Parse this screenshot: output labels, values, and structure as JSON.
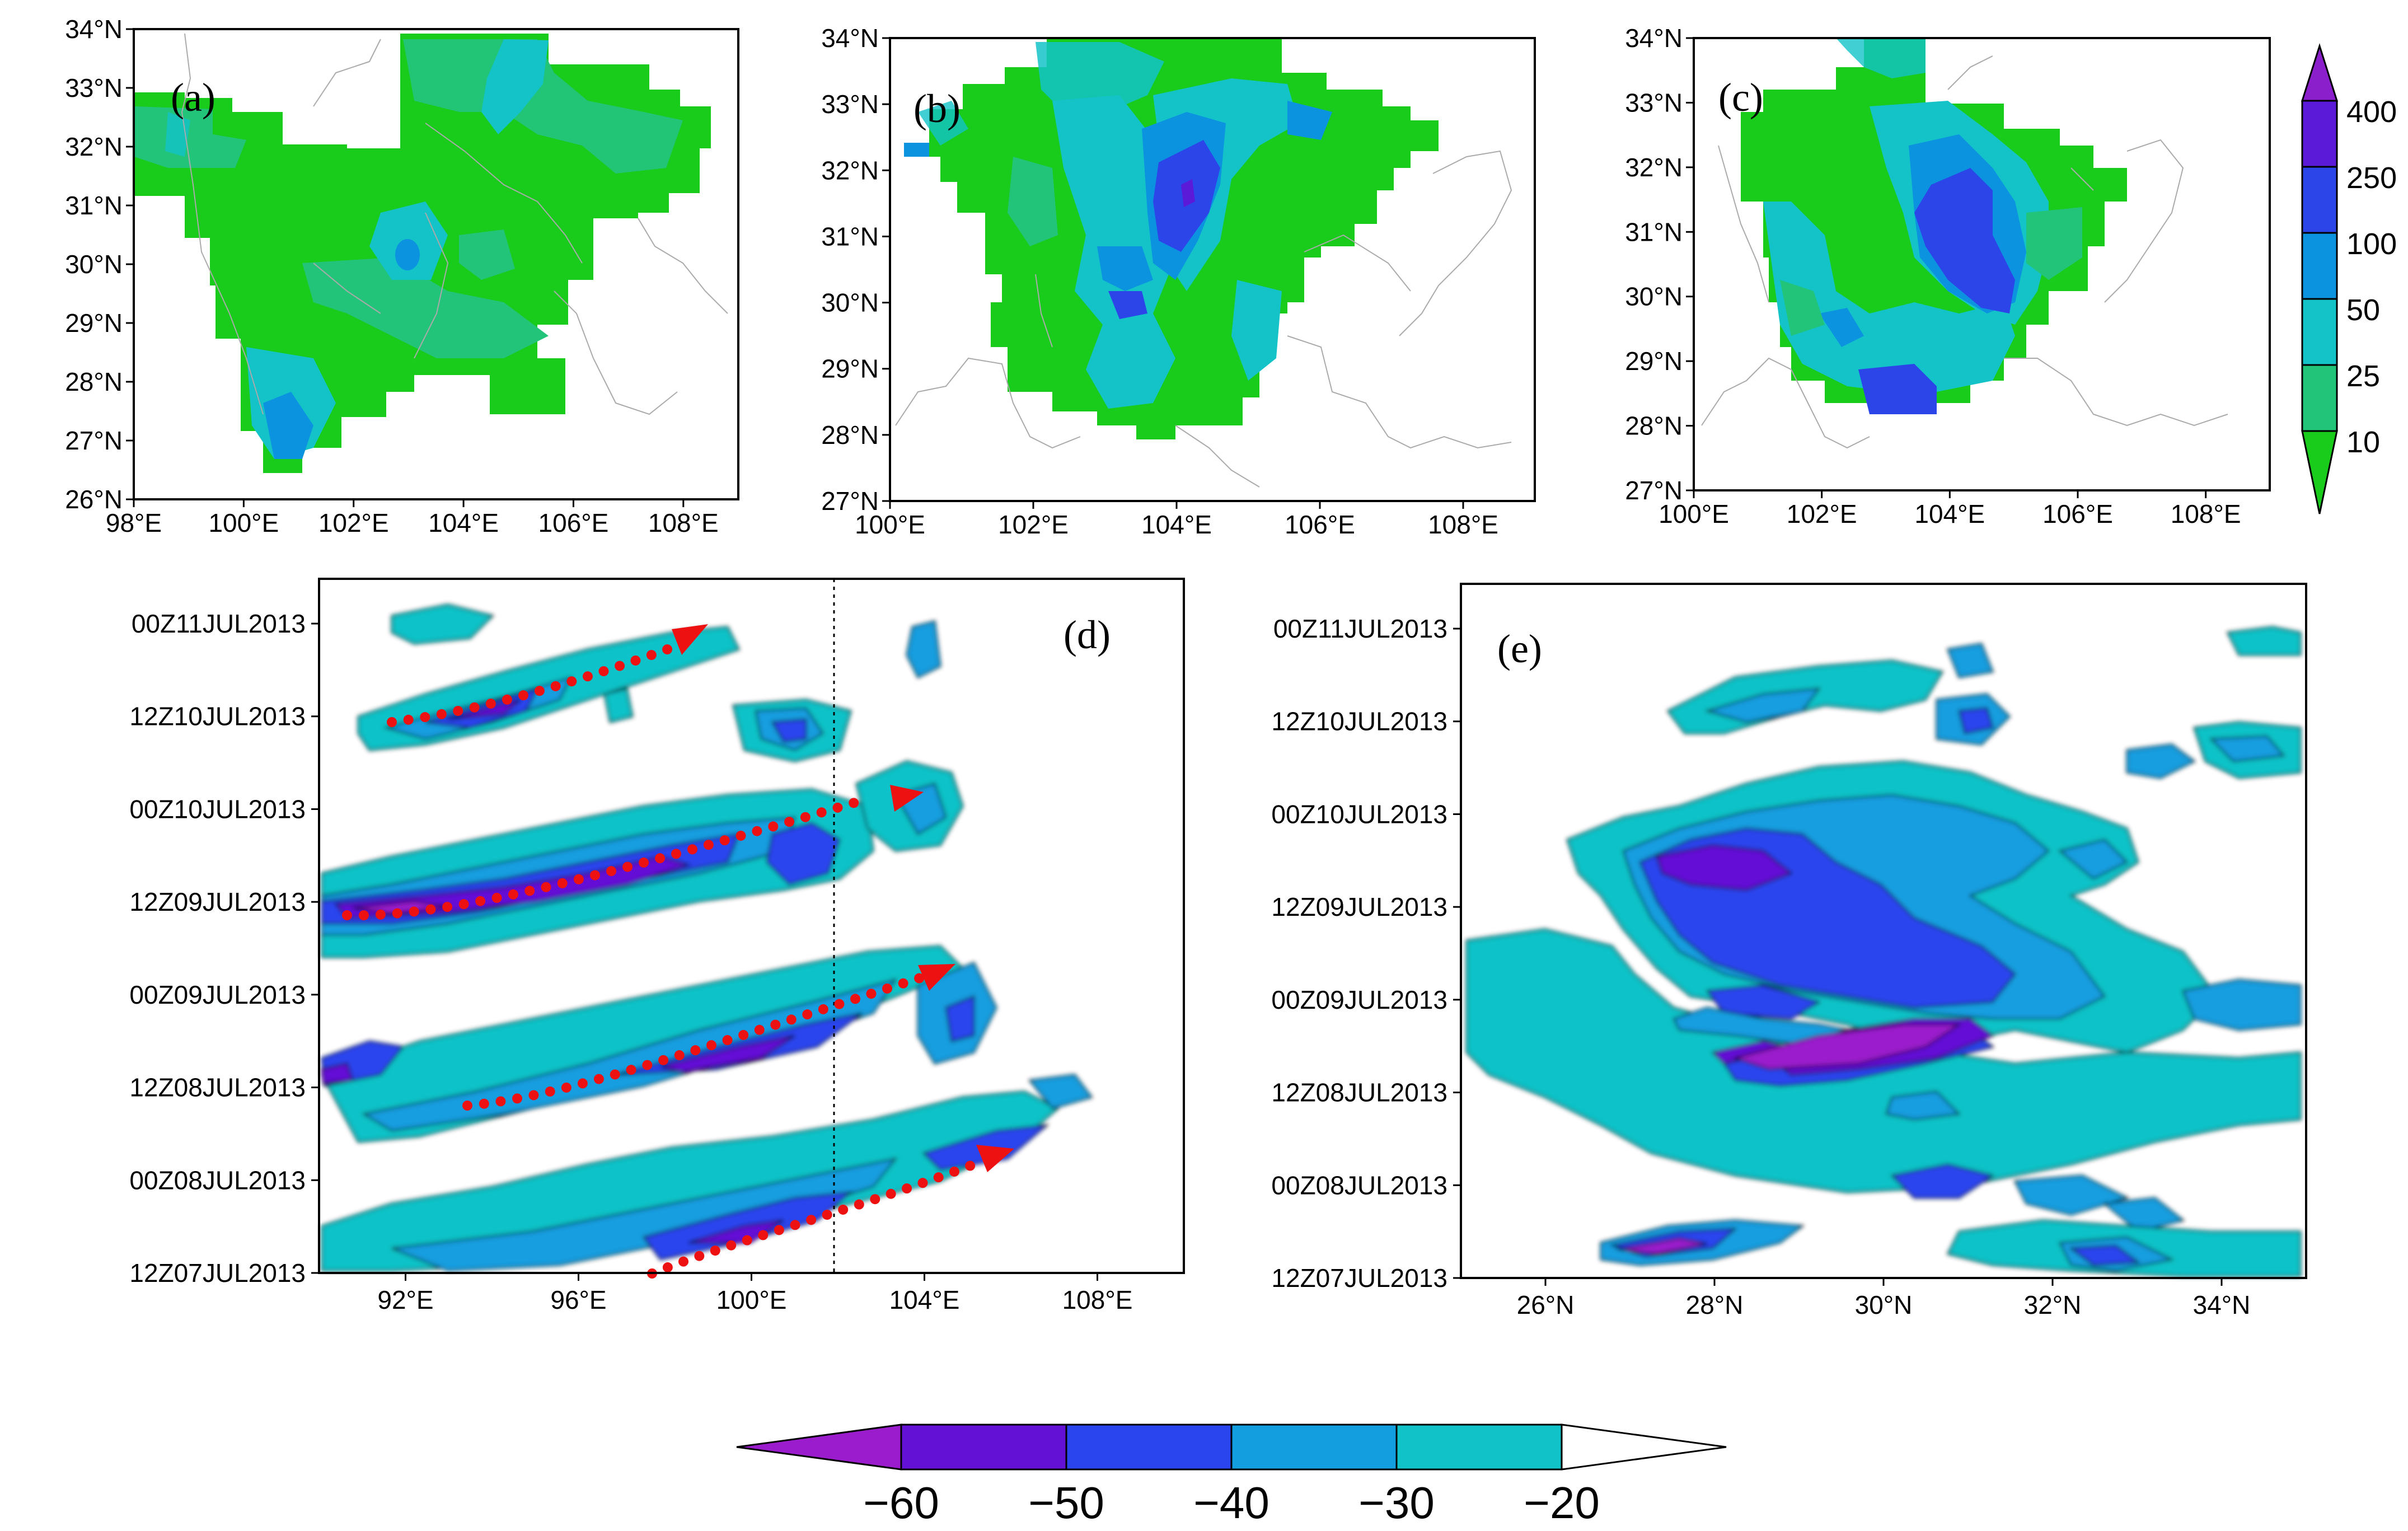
{
  "colors": {
    "lt10": "#19cc1b",
    "c10_25": "#22c47a",
    "c25_50": "#13c3c8",
    "c50_100": "#0c93e0",
    "c100_250": "#2b45e8",
    "c250_400": "#5a1ad8",
    "gt400": "#8b1fcc",
    "tbb_lt60": "#9a1ccc",
    "tbb_60_50": "#6411d6",
    "tbb_50_40": "#2b45ee",
    "tbb_40_30": "#139ee0",
    "tbb_30_20": "#11c2c8",
    "tbb_gt20": "#ffffff",
    "track": "#ee1111",
    "border": "#aaaaaa"
  },
  "panels": {
    "a": {
      "label": "(a)"
    },
    "b": {
      "label": "(b)"
    },
    "c": {
      "label": "(c)"
    },
    "d": {
      "label": "(d)"
    },
    "e": {
      "label": "(e)"
    }
  },
  "axes": {
    "a": {
      "lon": [
        "98°E",
        "100°E",
        "102°E",
        "104°E",
        "106°E",
        "108°E"
      ],
      "lat": [
        "26°N",
        "27°N",
        "28°N",
        "29°N",
        "30°N",
        "31°N",
        "32°N",
        "33°N",
        "34°N"
      ]
    },
    "b": {
      "lon": [
        "100°E",
        "102°E",
        "104°E",
        "106°E",
        "108°E"
      ],
      "lat": [
        "27°N",
        "28°N",
        "29°N",
        "30°N",
        "31°N",
        "32°N",
        "33°N",
        "34°N"
      ]
    },
    "c": {
      "lon": [
        "100°E",
        "102°E",
        "104°E",
        "106°E",
        "108°E"
      ],
      "lat": [
        "27°N",
        "28°N",
        "29°N",
        "30°N",
        "31°N",
        "32°N",
        "33°N",
        "34°N"
      ]
    },
    "d": {
      "lon": [
        "92°E",
        "96°E",
        "100°E",
        "104°E",
        "108°E"
      ],
      "time": [
        "12Z07JUL2013",
        "00Z08JUL2013",
        "12Z08JUL2013",
        "00Z09JUL2013",
        "12Z09JUL2013",
        "00Z10JUL2013",
        "12Z10JUL2013",
        "00Z11JUL2013"
      ]
    },
    "e": {
      "lat": [
        "26°N",
        "28°N",
        "30°N",
        "32°N",
        "34°N"
      ],
      "time": [
        "12Z07JUL2013",
        "00Z08JUL2013",
        "12Z08JUL2013",
        "00Z09JUL2013",
        "12Z09JUL2013",
        "00Z10JUL2013",
        "12Z10JUL2013",
        "00Z11JUL2013"
      ]
    }
  },
  "colorbar_precip": {
    "labels": [
      "400",
      "250",
      "100",
      "50",
      "25",
      "10"
    ]
  },
  "colorbar_tbb": {
    "labels": [
      "−60",
      "−50",
      "−40",
      "−30",
      "−20"
    ]
  },
  "chart_data": [
    {
      "panel": "(a)",
      "type": "heatmap",
      "xlim": [
        98,
        109
      ],
      "ylim": [
        26,
        34
      ],
      "levels": [
        10,
        25,
        50,
        100,
        250,
        400
      ]
    },
    {
      "panel": "(b)",
      "type": "heatmap",
      "xlim": [
        100,
        109
      ],
      "ylim": [
        27,
        34
      ],
      "levels": [
        10,
        25,
        50,
        100,
        250,
        400
      ]
    },
    {
      "panel": "(c)",
      "type": "heatmap",
      "xlim": [
        100,
        109
      ],
      "ylim": [
        27,
        34
      ],
      "levels": [
        10,
        25,
        50,
        100,
        250,
        400
      ]
    },
    {
      "panel": "(d)",
      "type": "heatmap",
      "xlim": [
        90,
        110
      ],
      "y": [
        "12Z07JUL2013",
        "00Z08JUL2013",
        "12Z08JUL2013",
        "00Z09JUL2013",
        "12Z09JUL2013",
        "00Z10JUL2013",
        "12Z10JUL2013",
        "00Z11JUL2013"
      ],
      "levels": [
        -60,
        -50,
        -40,
        -30,
        -20
      ],
      "reference_line_lon": 102,
      "tracks": [
        {
          "lon_start": 97.5,
          "lon_end": 106,
          "t_start": "12Z07JUL2013",
          "t_end": "00Z08JUL2013"
        },
        {
          "lon_start": 93.5,
          "lon_end": 104.5,
          "t_start": "12Z08JUL2013",
          "t_end": "00Z09JUL2013"
        },
        {
          "lon_start": 90.5,
          "lon_end": 104,
          "t_start": "12Z09JUL2013",
          "t_end": "00Z10JUL2013"
        },
        {
          "lon_start": 91.5,
          "lon_end": 99.5,
          "t_start": "12Z10JUL2013",
          "t_end": "00Z11JUL2013"
        }
      ]
    },
    {
      "panel": "(e)",
      "type": "heatmap",
      "xlim": [
        25,
        35
      ],
      "y": [
        "12Z07JUL2013",
        "00Z08JUL2013",
        "12Z08JUL2013",
        "00Z09JUL2013",
        "12Z09JUL2013",
        "00Z10JUL2013",
        "12Z10JUL2013",
        "00Z11JUL2013"
      ],
      "levels": [
        -60,
        -50,
        -40,
        -30,
        -20
      ]
    }
  ]
}
